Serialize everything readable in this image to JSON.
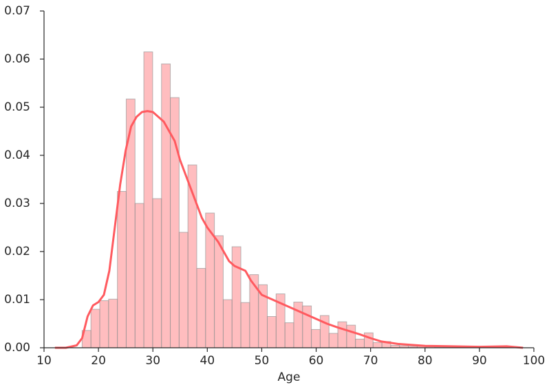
{
  "chart_data": {
    "type": "histogram",
    "xlabel": "Age",
    "bins": [
      17,
      18.62,
      20.24,
      21.86,
      23.48,
      25.1,
      26.72,
      28.34,
      29.96,
      31.58,
      33.2,
      34.82,
      36.44,
      38.06,
      39.68,
      41.3,
      42.92,
      44.54,
      46.16,
      47.78,
      49.4,
      51.02,
      52.64,
      54.26,
      55.88,
      57.5,
      59.12,
      60.74,
      62.36,
      63.98,
      65.6,
      67.22,
      68.84,
      70.46,
      72.08,
      73.7,
      75.32,
      76.94,
      78.56,
      80.18,
      81.8,
      83.42,
      85.04,
      86.66,
      88.28,
      89.9,
      91.52,
      93.14,
      94.76,
      96.38,
      98
    ],
    "values": [
      0.0036,
      0.008,
      0.0098,
      0.0101,
      0.0325,
      0.0517,
      0.03,
      0.0615,
      0.031,
      0.059,
      0.052,
      0.024,
      0.038,
      0.0165,
      0.028,
      0.0233,
      0.01,
      0.021,
      0.0094,
      0.0152,
      0.0131,
      0.0065,
      0.0112,
      0.0052,
      0.0095,
      0.0087,
      0.0038,
      0.0067,
      0.003,
      0.0054,
      0.0047,
      0.0018,
      0.0031,
      0.0011,
      0.0013,
      0.0005,
      0.0004,
      0.0003,
      0.0003,
      0.0002,
      0.0001,
      0.0001,
      0.0001,
      0.0001,
      0.0001,
      0.0001,
      0.0001,
      0.0001,
      0.0002,
      0.0001
    ],
    "color": "#ff5a5f",
    "kde": {
      "color": "#ff5a5f",
      "x": [
        12,
        14,
        16,
        17,
        18,
        19,
        20,
        21,
        22,
        23,
        24,
        25,
        26,
        27,
        28,
        29,
        30,
        31,
        32,
        33,
        34,
        35,
        36,
        37,
        38,
        39,
        40,
        42,
        44,
        45,
        47,
        48,
        50,
        52,
        54,
        56,
        58,
        60,
        62,
        64,
        66,
        68,
        70,
        72,
        75,
        80,
        85,
        90,
        95,
        98
      ],
      "values": [
        0,
        0,
        0.0005,
        0.002,
        0.0065,
        0.0088,
        0.0095,
        0.011,
        0.016,
        0.025,
        0.034,
        0.041,
        0.046,
        0.048,
        0.049,
        0.0492,
        0.049,
        0.048,
        0.047,
        0.045,
        0.043,
        0.039,
        0.036,
        0.033,
        0.03,
        0.027,
        0.025,
        0.022,
        0.018,
        0.017,
        0.016,
        0.014,
        0.011,
        0.01,
        0.009,
        0.008,
        0.007,
        0.006,
        0.005,
        0.0042,
        0.0035,
        0.0028,
        0.002,
        0.0013,
        0.0008,
        0.0004,
        0.0003,
        0.0002,
        0.0003,
        0
      ]
    },
    "xlim": [
      10,
      100
    ],
    "xticks": [
      10,
      20,
      30,
      40,
      50,
      60,
      70,
      80,
      90,
      100
    ],
    "ylim": [
      0,
      0.07
    ],
    "yticks": [
      {
        "value": 0,
        "label": "0.00"
      },
      {
        "value": 0.01,
        "label": "0.01"
      },
      {
        "value": 0.02,
        "label": "0.02"
      },
      {
        "value": 0.03,
        "label": "0.03"
      },
      {
        "value": 0.04,
        "label": "0.04"
      },
      {
        "value": 0.05,
        "label": "0.05"
      },
      {
        "value": 0.06,
        "label": "0.06"
      },
      {
        "value": 0.07,
        "label": "0.07"
      }
    ]
  }
}
